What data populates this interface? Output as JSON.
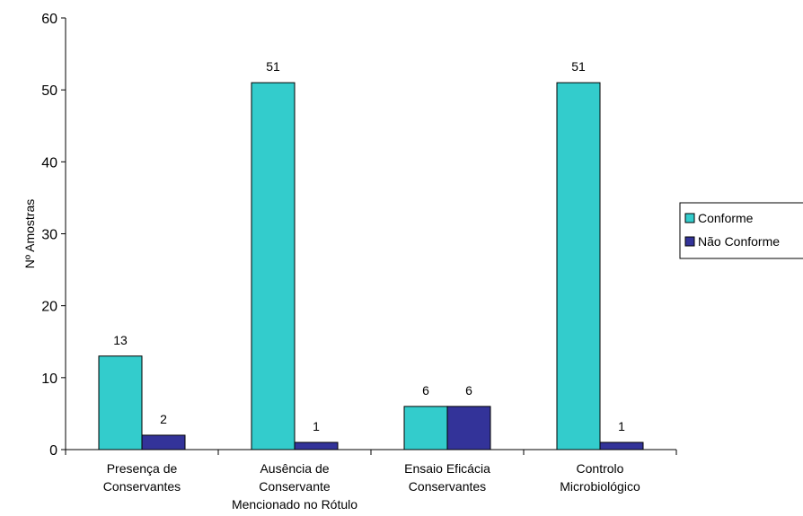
{
  "chart_data": {
    "type": "bar",
    "title": "",
    "xlabel": "",
    "ylabel": "Nº Amostras",
    "ylim": [
      0,
      60
    ],
    "yticks": [
      0,
      10,
      20,
      30,
      40,
      50,
      60
    ],
    "grid": false,
    "legend_position": "right",
    "categories": [
      [
        "Presença de",
        "Conservantes"
      ],
      [
        "Ausência de",
        "Conservante",
        "Mencionado no Rótulo"
      ],
      [
        "Ensaio Eficácia",
        "Conservantes"
      ],
      [
        "Controlo",
        "Microbiológico"
      ]
    ],
    "series": [
      {
        "name": "Conforme",
        "values": [
          13,
          51,
          6,
          51
        ],
        "color": "#33CCCC"
      },
      {
        "name": "Não Conforme",
        "values": [
          2,
          1,
          6,
          1
        ],
        "color": "#333399"
      }
    ]
  }
}
